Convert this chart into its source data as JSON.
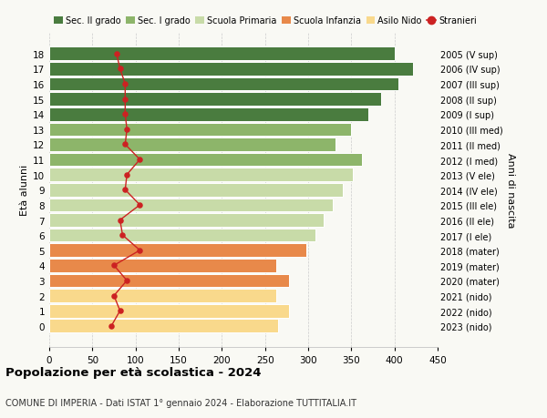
{
  "ages": [
    0,
    1,
    2,
    3,
    4,
    5,
    6,
    7,
    8,
    9,
    10,
    11,
    12,
    13,
    14,
    15,
    16,
    17,
    18
  ],
  "bar_values": [
    265,
    278,
    263,
    278,
    263,
    298,
    308,
    318,
    328,
    340,
    352,
    362,
    332,
    350,
    370,
    385,
    405,
    422,
    400
  ],
  "stranieri": [
    72,
    82,
    75,
    90,
    75,
    105,
    85,
    82,
    105,
    88,
    90,
    105,
    88,
    90,
    88,
    88,
    88,
    82,
    78
  ],
  "right_labels": [
    "2023 (nido)",
    "2022 (nido)",
    "2021 (nido)",
    "2020 (mater)",
    "2019 (mater)",
    "2018 (mater)",
    "2017 (I ele)",
    "2016 (II ele)",
    "2015 (III ele)",
    "2014 (IV ele)",
    "2013 (V ele)",
    "2012 (I med)",
    "2011 (II med)",
    "2010 (III med)",
    "2009 (I sup)",
    "2008 (II sup)",
    "2007 (III sup)",
    "2006 (IV sup)",
    "2005 (V sup)"
  ],
  "bar_colors": [
    "#f9d98c",
    "#f9d98c",
    "#f9d98c",
    "#e8894a",
    "#e8894a",
    "#e8894a",
    "#c8dba8",
    "#c8dba8",
    "#c8dba8",
    "#c8dba8",
    "#c8dba8",
    "#8db56a",
    "#8db56a",
    "#8db56a",
    "#4a7c3f",
    "#4a7c3f",
    "#4a7c3f",
    "#4a7c3f",
    "#4a7c3f"
  ],
  "legend_labels": [
    "Sec. II grado",
    "Sec. I grado",
    "Scuola Primaria",
    "Scuola Infanzia",
    "Asilo Nido",
    "Stranieri"
  ],
  "legend_colors": [
    "#4a7c3f",
    "#8db56a",
    "#c8dba8",
    "#e8894a",
    "#f9d98c",
    "#cc2222"
  ],
  "stranieri_color": "#cc2222",
  "title": "Popolazione per età scolastica - 2024",
  "subtitle": "COMUNE DI IMPERIA - Dati ISTAT 1° gennaio 2024 - Elaborazione TUTTITALIA.IT",
  "ylabel": "Età alunni",
  "ylabel2": "Anni di nascita",
  "xlim": [
    0,
    450
  ],
  "xticks": [
    0,
    50,
    100,
    150,
    200,
    250,
    300,
    350,
    400,
    450
  ],
  "background_color": "#f9f9f4",
  "grid_color": "#cccccc"
}
